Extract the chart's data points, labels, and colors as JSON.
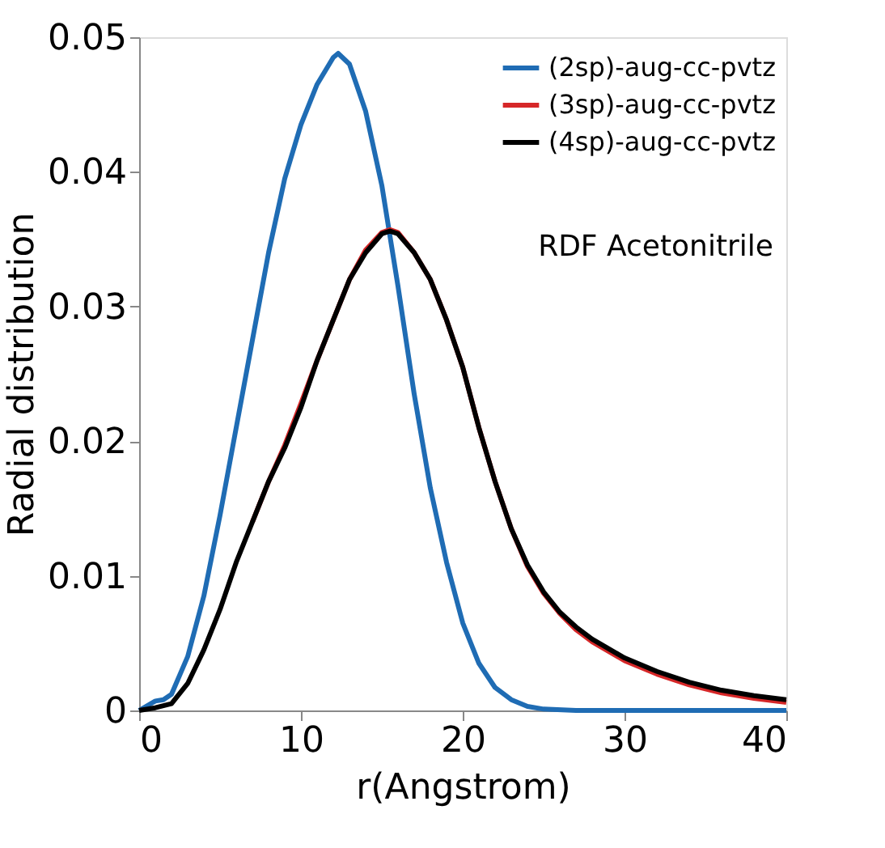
{
  "chart_data": {
    "type": "line",
    "xlabel": "r(Angstrom)",
    "ylabel": "Radial distribution",
    "annotations": [
      "RDF Acetonitrile"
    ],
    "xlim": [
      0,
      40
    ],
    "xticks": [
      0,
      10,
      20,
      30,
      40
    ],
    "ylim": [
      0,
      0.05
    ],
    "yticks": [
      0,
      0.01,
      0.02,
      0.03,
      0.04,
      0.05
    ],
    "grid": false,
    "legend": "top right",
    "line_style": "solid",
    "marker": "none",
    "series": [
      {
        "name": "(2sp)-aug-cc-pvtz",
        "color": "#1f6cb4",
        "x": [
          0,
          1,
          1.5,
          2,
          3,
          4,
          5,
          6,
          7,
          8,
          9,
          10,
          11,
          12,
          12.3,
          13,
          14,
          15,
          16,
          17,
          18,
          19,
          20,
          21,
          22,
          23,
          24,
          25,
          27,
          30,
          35,
          40
        ],
        "values": [
          0,
          0.0007,
          0.0008,
          0.0012,
          0.004,
          0.0085,
          0.0145,
          0.021,
          0.0275,
          0.034,
          0.0395,
          0.0435,
          0.0465,
          0.0485,
          0.0488,
          0.048,
          0.0445,
          0.039,
          0.0315,
          0.0235,
          0.0165,
          0.011,
          0.0065,
          0.0035,
          0.0017,
          0.0008,
          0.0003,
          0.0001,
          0,
          0,
          0,
          0
        ]
      },
      {
        "name": "(3sp)-aug-cc-pvtz",
        "color": "#d62728",
        "x": [
          7,
          8,
          9,
          10,
          11,
          12,
          13,
          14,
          15,
          15.5,
          16,
          17,
          18,
          19,
          20,
          21,
          22,
          23,
          24,
          25,
          26,
          27,
          28,
          30,
          32,
          34,
          36,
          38,
          40
        ],
        "values": [
          0.014,
          0.017,
          0.0197,
          0.0228,
          0.026,
          0.029,
          0.032,
          0.0342,
          0.0355,
          0.0357,
          0.0355,
          0.034,
          0.032,
          0.029,
          0.0255,
          0.021,
          0.017,
          0.0135,
          0.0107,
          0.0087,
          0.0072,
          0.006,
          0.0051,
          0.0037,
          0.0027,
          0.0019,
          0.0013,
          0.0009,
          0.0006
        ]
      },
      {
        "name": "(4sp)-aug-cc-pvtz",
        "color": "#000000",
        "x": [
          0,
          1,
          2,
          3,
          4,
          5,
          6,
          7,
          8,
          9,
          10,
          11,
          12,
          13,
          14,
          15,
          15.5,
          16,
          17,
          18,
          19,
          20,
          21,
          22,
          23,
          24,
          25,
          26,
          27,
          28,
          30,
          32,
          34,
          36,
          38,
          40
        ],
        "values": [
          0,
          0.0002,
          0.0005,
          0.002,
          0.0045,
          0.0075,
          0.011,
          0.014,
          0.017,
          0.0195,
          0.0225,
          0.026,
          0.029,
          0.032,
          0.034,
          0.0354,
          0.0356,
          0.0354,
          0.034,
          0.032,
          0.029,
          0.0255,
          0.021,
          0.017,
          0.0135,
          0.0108,
          0.0088,
          0.0073,
          0.0062,
          0.0053,
          0.0039,
          0.0029,
          0.0021,
          0.0015,
          0.0011,
          0.0008
        ]
      }
    ]
  }
}
